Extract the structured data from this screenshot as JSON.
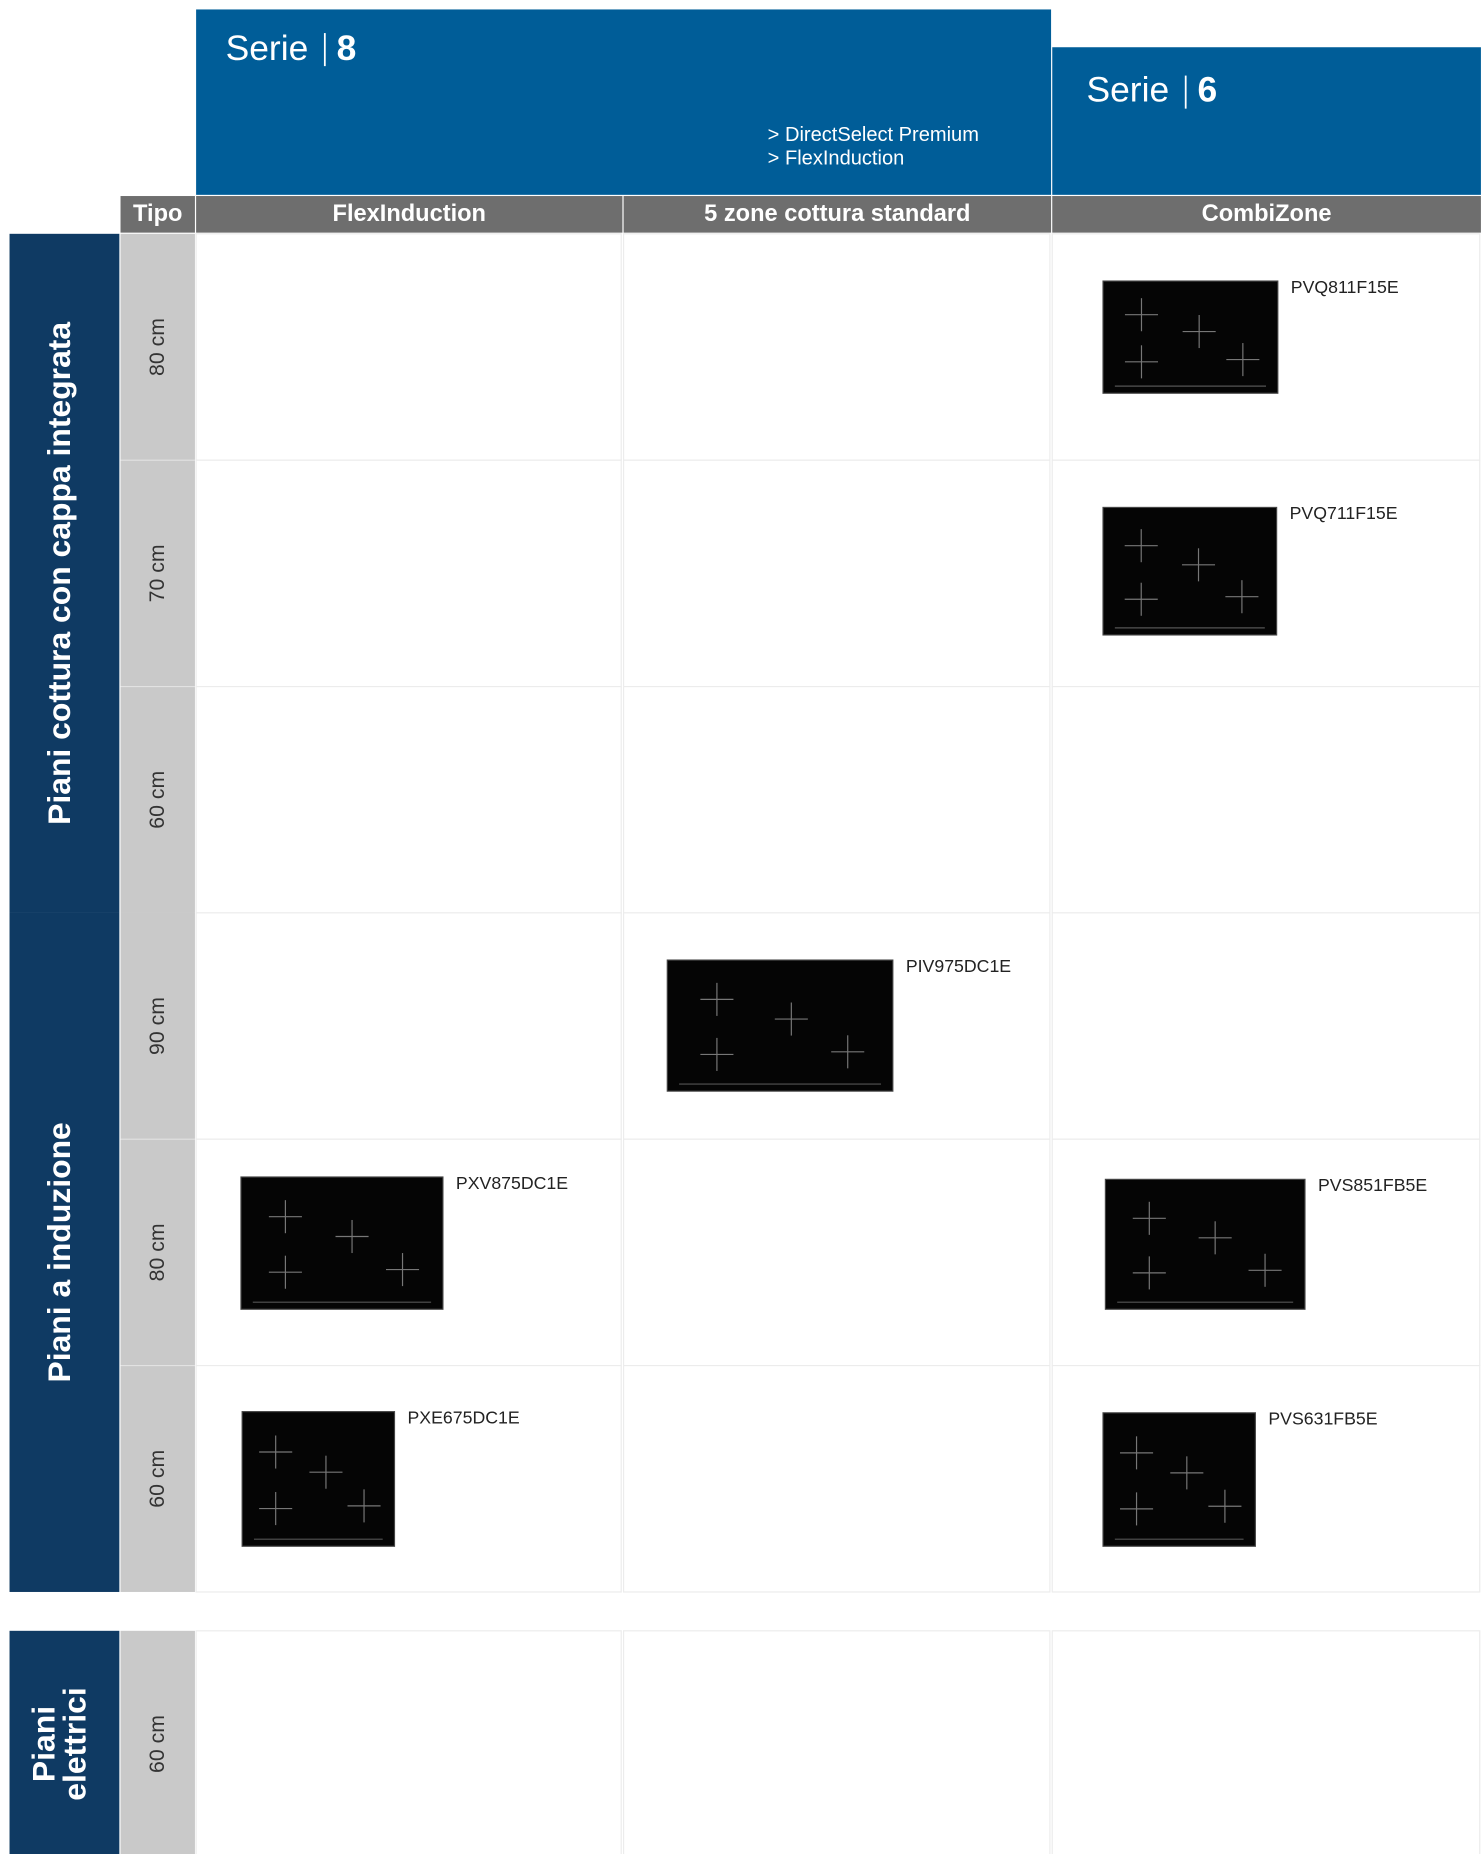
{
  "header": {
    "series": [
      {
        "label": "Serie",
        "number": "8",
        "features": [
          "> DirectSelect Premium",
          "> FlexInduction"
        ]
      },
      {
        "label": "Serie",
        "number": "6"
      }
    ]
  },
  "columns": [
    "Tipo",
    "FlexInduction",
    "5 zone cottura standard",
    "CombiZone"
  ],
  "groups": [
    {
      "label": [
        "Piani cottura con cappa integrata"
      ],
      "rows": [
        {
          "size": "80 cm",
          "cells": [
            null,
            null,
            "PVQ811F15E"
          ]
        },
        {
          "size": "70 cm",
          "cells": [
            null,
            null,
            "PVQ711F15E"
          ]
        },
        {
          "size": "60 cm",
          "cells": [
            null,
            null,
            null
          ]
        }
      ]
    },
    {
      "label": [
        "Piani a induzione"
      ],
      "rows": [
        {
          "size": "90 cm",
          "cells": [
            null,
            "PIV975DC1E",
            null
          ]
        },
        {
          "size": "80 cm",
          "cells": [
            "PXV875DC1E",
            null,
            "PVS851FB5E"
          ]
        },
        {
          "size": "60 cm",
          "cells": [
            "PXE675DC1E",
            null,
            "PVS631FB5E"
          ]
        }
      ]
    },
    {
      "label": [
        "Piani",
        "elettrici"
      ],
      "rows": [
        {
          "size": "60 cm",
          "cells": [
            null,
            null,
            null
          ]
        }
      ]
    }
  ]
}
